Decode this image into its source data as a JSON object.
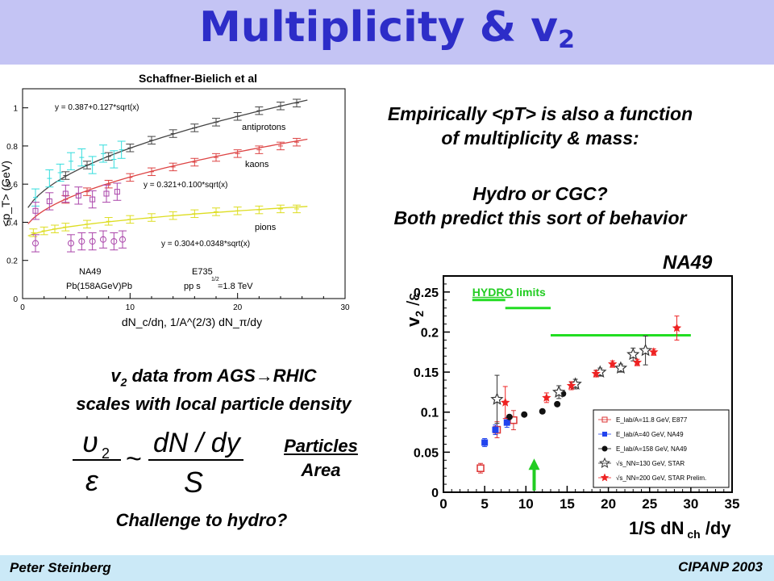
{
  "header": {
    "title": "Multiplicity & v",
    "title_sub": "2"
  },
  "credit": "Schaffner-Bielich et al",
  "text": {
    "empirical_line1": "Empirically <pT> is also a function",
    "empirical_line2": "of multiplicity & mass:",
    "hydro_line1": "Hydro or CGC?",
    "hydro_line2": "Both predict this sort of behavior",
    "na49_label": "NA49",
    "v2_line1_a": "v",
    "v2_line1_sub": "2",
    "v2_line1_b": " data from AGS",
    "v2_line1_c": "RHIC",
    "v2_line2": "scales with local particle density",
    "particles": "Particles",
    "area": "Area",
    "challenge": "Challenge to hydro?"
  },
  "formula": {
    "num_left": "υ",
    "num_left_sub": "2",
    "den_left": "ε",
    "sim": "~",
    "num_right": "dN / dy",
    "den_right": "S"
  },
  "footer": {
    "left": "Peter Steinberg",
    "right": "CIPANP 2003"
  },
  "left_chart": {
    "chart_data": {
      "type": "scatter",
      "xlabel": "dN_c/dη, 1/A^(2/3) dN_π/dy",
      "ylabel": "<p_T> (GeV)",
      "xlim": [
        0,
        30
      ],
      "ylim": [
        0,
        1.1
      ],
      "xticks": [
        "0",
        "10",
        "20",
        "30"
      ],
      "yticks": [
        "0",
        "0.2",
        "0.4",
        "0.6",
        "0.8",
        "1"
      ],
      "annotations": {
        "fit_anti": "y = 0.387+0.127*sqrt(x)",
        "fit_kaon": "y = 0.321+0.100*sqrt(x)",
        "fit_pion": "y = 0.304+0.0348*sqrt(x)",
        "antiprotons": "antiprotons",
        "kaons": "kaons",
        "pions": "pions",
        "na49": "NA49",
        "pbpb": "Pb(158AGeV)Pb",
        "e735": "E735",
        "pp": "pp  s",
        "pp_exp": "1/2",
        "pp_energy": "=1.8 TeV"
      },
      "fits": [
        {
          "name": "antiprotons",
          "a": 0.387,
          "b": 0.127,
          "color": "#444444"
        },
        {
          "name": "kaons",
          "a": 0.321,
          "b": 0.1,
          "color": "#dd4444"
        },
        {
          "name": "pions",
          "a": 0.304,
          "b": 0.0348,
          "color": "#dddd22"
        }
      ],
      "series": [
        {
          "name": "antiprotons",
          "color": "#444444",
          "marker": "none",
          "x": [
            4,
            6,
            8,
            10,
            12,
            14,
            16,
            18,
            20,
            22,
            24,
            25.5
          ],
          "y": [
            0.645,
            0.7,
            0.745,
            0.79,
            0.83,
            0.865,
            0.895,
            0.925,
            0.955,
            0.985,
            1.01,
            1.025
          ]
        },
        {
          "name": "kaons",
          "color": "#dd4444",
          "marker": "none",
          "x": [
            4,
            6,
            8,
            10,
            12,
            14,
            16,
            18,
            20,
            22,
            24,
            25.5
          ],
          "y": [
            0.52,
            0.56,
            0.6,
            0.635,
            0.665,
            0.69,
            0.715,
            0.74,
            0.76,
            0.78,
            0.8,
            0.82
          ]
        },
        {
          "name": "pions",
          "color": "#dddd22",
          "marker": "none",
          "x": [
            1,
            2,
            3,
            4,
            6,
            8,
            10,
            12,
            14,
            16,
            18,
            20,
            22,
            24,
            25.5
          ],
          "y": [
            0.345,
            0.355,
            0.365,
            0.375,
            0.39,
            0.405,
            0.415,
            0.425,
            0.435,
            0.445,
            0.455,
            0.46,
            0.465,
            0.47,
            0.47
          ]
        },
        {
          "name": "NA49 antiprotons",
          "color": "#33dddd",
          "marker": "none",
          "x": [
            1.2,
            2.5,
            3.5,
            4.5,
            5.5,
            6.5,
            7.5,
            8.5,
            9.2
          ],
          "y": [
            0.53,
            0.63,
            0.66,
            0.72,
            0.74,
            0.7,
            0.76,
            0.73,
            0.78
          ]
        },
        {
          "name": "NA49 kaons",
          "color": "#aa44aa",
          "marker": "square",
          "x": [
            1.2,
            2.5,
            4.0,
            5.2,
            6.5,
            7.8,
            8.8
          ],
          "y": [
            0.46,
            0.51,
            0.55,
            0.54,
            0.52,
            0.55,
            0.56
          ]
        },
        {
          "name": "NA49 pions",
          "color": "#aa44aa",
          "marker": "circle",
          "x": [
            1.2,
            4.5,
            5.5,
            6.5,
            7.5,
            8.5,
            9.3
          ],
          "y": [
            0.29,
            0.29,
            0.3,
            0.3,
            0.31,
            0.3,
            0.31
          ]
        }
      ]
    }
  },
  "right_chart": {
    "chart_data": {
      "type": "scatter",
      "xlabel": "1/S dN",
      "xlabel_sub": "ch",
      "xlabel_end": " /dy",
      "ylabel": "v",
      "ylabel_sub": "2",
      "ylabel_end": " /ε",
      "xlim": [
        0,
        35
      ],
      "ylim": [
        0,
        0.27
      ],
      "xticks": [
        "0",
        "5",
        "10",
        "15",
        "20",
        "25",
        "30",
        "35"
      ],
      "yticks": [
        "0",
        "0.05",
        "0.1",
        "0.15",
        "0.2",
        "0.25"
      ],
      "hydro_label_a": "HYDRO",
      "hydro_label_b": " limits",
      "hydro_limits": [
        {
          "x": [
            3.5,
            7.5
          ],
          "y": 0.24
        },
        {
          "x": [
            7.5,
            13
          ],
          "y": 0.23
        },
        {
          "x": [
            13,
            30
          ],
          "y": 0.196
        }
      ],
      "arrow_x": 11,
      "legend": [
        {
          "label": "E_lab/A=11.8 GeV, E877",
          "color": "#dd3333",
          "marker": "open-square"
        },
        {
          "label": "E_lab/A=40 GeV, NA49",
          "color": "#2244ee",
          "marker": "filled-square"
        },
        {
          "label": "E_lab/A=158 GeV, NA49",
          "color": "#111111",
          "marker": "filled-circle"
        },
        {
          "label": "√s_NN=130 GeV, STAR",
          "color": "#333333",
          "marker": "open-star"
        },
        {
          "label": "√s_NN=200 GeV, STAR Prelim.",
          "color": "#ee2222",
          "marker": "filled-star"
        }
      ],
      "series": [
        {
          "name": "E_lab/A=11.8 GeV, E877",
          "marker": "open-square",
          "color": "#dd3333",
          "x": [
            4.5,
            6.5,
            8.5
          ],
          "y": [
            0.03,
            0.078,
            0.09
          ],
          "err": [
            0.006,
            0.01,
            0.012
          ]
        },
        {
          "name": "E_lab/A=40 GeV, NA49",
          "marker": "filled-square",
          "color": "#2244ee",
          "x": [
            5.0,
            6.3,
            7.7
          ],
          "y": [
            0.062,
            0.078,
            0.087
          ],
          "err": [
            0.005,
            0.006,
            0.006
          ]
        },
        {
          "name": "E_lab/A=158 GeV, NA49",
          "marker": "filled-circle",
          "color": "#111111",
          "x": [
            8.0,
            9.8,
            12.0,
            13.8,
            14.5
          ],
          "y": [
            0.094,
            0.097,
            0.101,
            0.11,
            0.123
          ],
          "err": [
            0,
            0,
            0,
            0,
            0
          ]
        },
        {
          "name": "√s_NN=130 GeV, STAR",
          "marker": "open-star",
          "color": "#333333",
          "x": [
            6.5,
            14.0,
            16.0,
            19.0,
            21.5,
            23.0,
            24.5
          ],
          "y": [
            0.116,
            0.125,
            0.135,
            0.15,
            0.155,
            0.172,
            0.177
          ],
          "err": [
            0.03,
            0.008,
            0.006,
            0.005,
            0.005,
            0.008,
            0.018
          ]
        },
        {
          "name": "√s_NN=200 GeV, STAR Prelim.",
          "marker": "filled-star",
          "color": "#ee2222",
          "x": [
            7.5,
            12.5,
            15.5,
            18.5,
            20.5,
            23.5,
            25.5,
            28.3
          ],
          "y": [
            0.112,
            0.118,
            0.133,
            0.148,
            0.16,
            0.162,
            0.175,
            0.205
          ],
          "err": [
            0.02,
            0.006,
            0.005,
            0.004,
            0.004,
            0.004,
            0.004,
            0.015
          ]
        }
      ]
    }
  }
}
